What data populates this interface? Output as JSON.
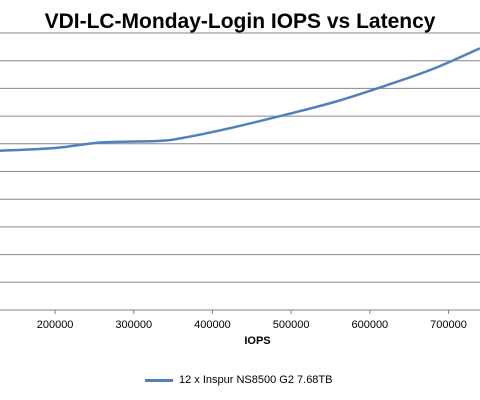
{
  "chart_data": {
    "type": "line",
    "title": "VDI-LC-Monday-Login IOPS vs Latency",
    "xlabel": "IOPS",
    "ylabel": "",
    "xlim": [
      130000,
      740000
    ],
    "ylim": [
      0,
      10
    ],
    "x_ticks": [
      200000,
      300000,
      400000,
      500000,
      600000,
      700000
    ],
    "y_gridlines": [
      0,
      1,
      2,
      3,
      4,
      5,
      6,
      7,
      8,
      9,
      10
    ],
    "grid": true,
    "legend_position": "bottom",
    "series": [
      {
        "name": "12 x Inspur NS8500 G2 7.68TB",
        "color": "#4f81bd",
        "x": [
          130000,
          200000,
          260000,
          330000,
          360000,
          420000,
          500000,
          560000,
          620000,
          680000,
          740000
        ],
        "y": [
          5.75,
          5.85,
          6.05,
          6.1,
          6.2,
          6.55,
          7.1,
          7.55,
          8.1,
          8.7,
          9.45
        ]
      }
    ]
  }
}
